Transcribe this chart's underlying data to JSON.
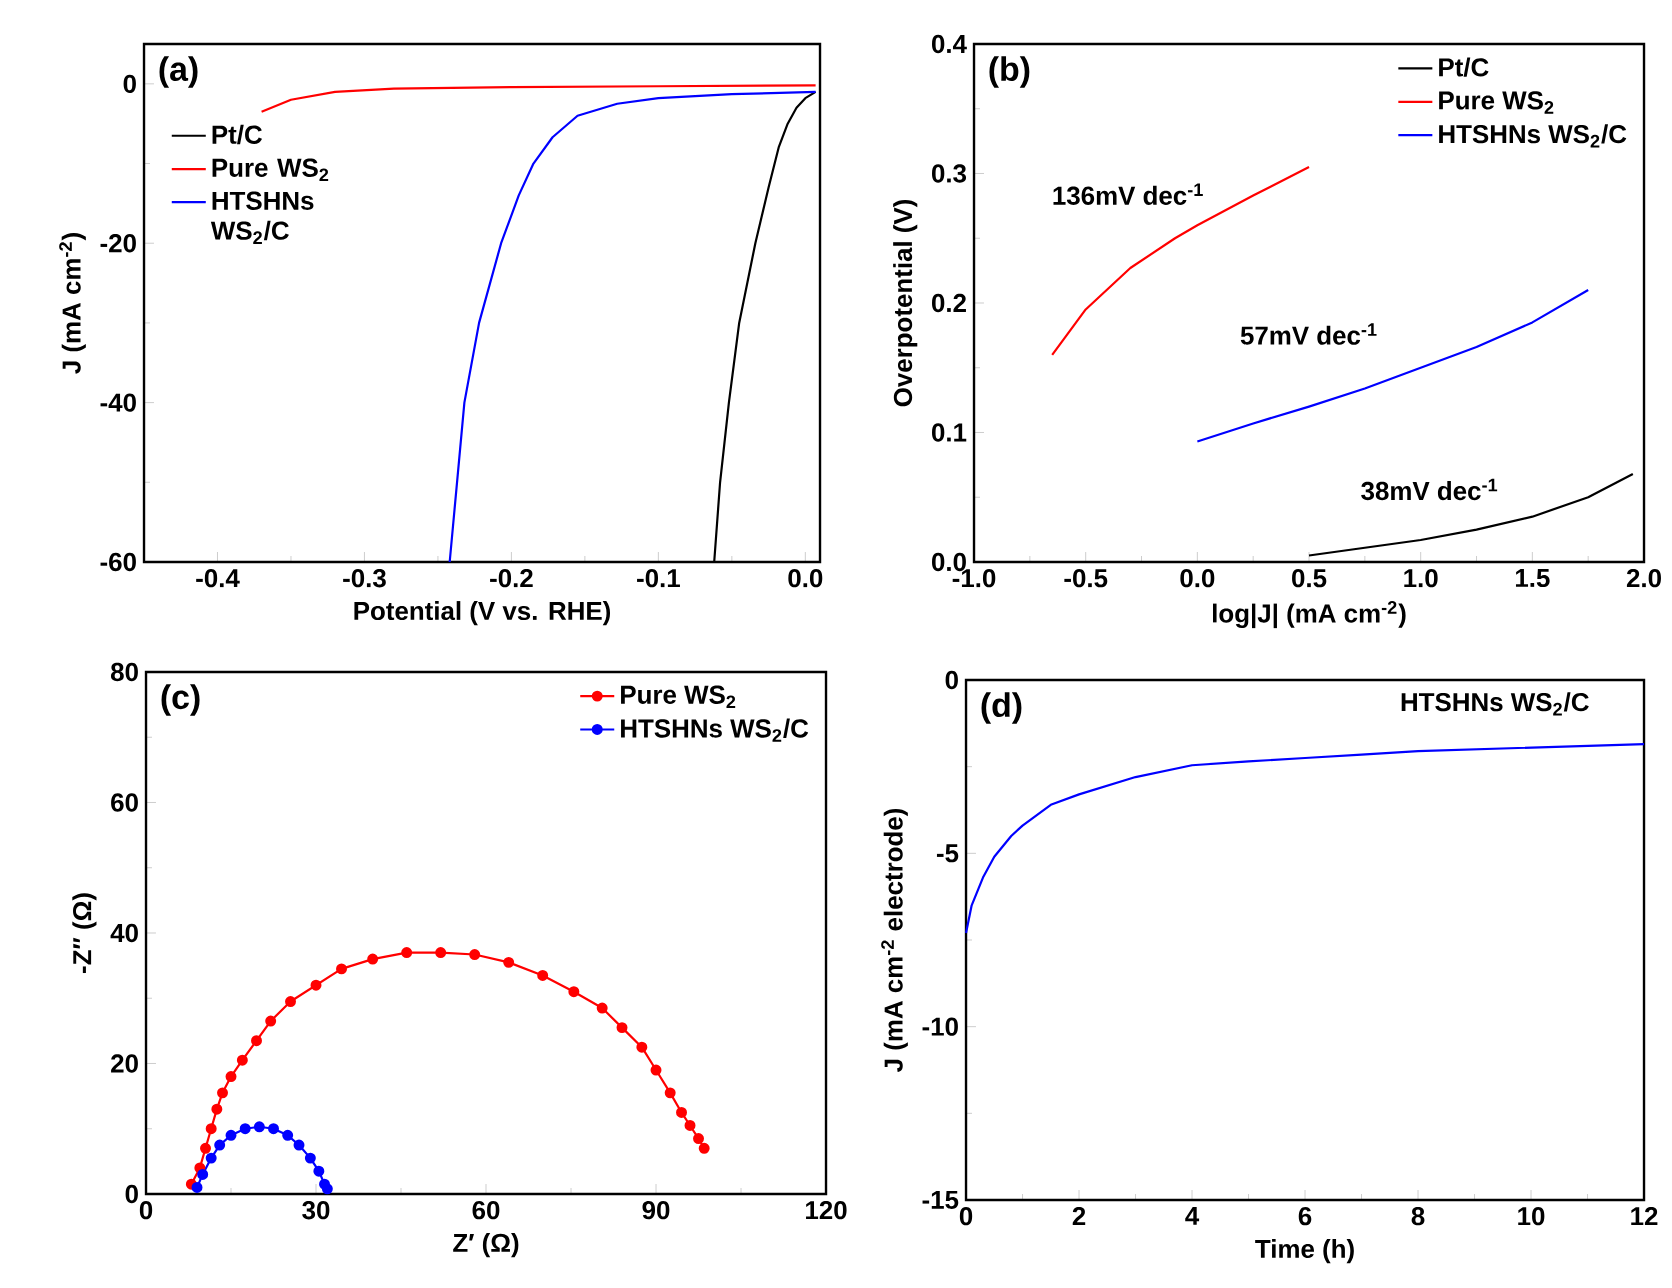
{
  "chart_data": [
    {
      "type": "line",
      "xlabel": "Potential (V vs. RHE)",
      "ylabel": "J (mA cm$^{-2}$)",
      "xlim": [
        -0.45,
        0.01
      ],
      "ylim": [
        -60,
        5
      ],
      "xticks": [
        -0.4,
        -0.3,
        -0.2,
        -0.1,
        {
          "value": 0,
          "label": "0.0"
        }
      ],
      "yticks": [
        0,
        -20,
        -40,
        -60
      ],
      "legend": "top left",
      "annotations": [
        "(a)"
      ],
      "series": [
        {
          "name": "Pt/C",
          "color": "#000000",
          "x": [
            -0.062,
            -0.058,
            -0.052,
            -0.045,
            -0.034,
            -0.025,
            -0.018,
            -0.012,
            -0.006,
            0.0,
            0.007
          ],
          "values": [
            -60,
            -50,
            -40,
            -30,
            -20,
            -13,
            -7.9,
            -5,
            -3,
            -1.8,
            -1
          ]
        },
        {
          "name": "Pure WS$_{2}$",
          "color": "#ff0000",
          "x": [
            -0.37,
            -0.35,
            -0.32,
            -0.28,
            -0.2,
            -0.1,
            0.007
          ],
          "values": [
            -3.5,
            -2,
            -1,
            -0.6,
            -0.4,
            -0.3,
            -0.2
          ]
        },
        {
          "name": "HTSHNs WS$_{2}$/C",
          "color": "#0000ff",
          "x": [
            -0.242,
            -0.237,
            -0.232,
            -0.222,
            -0.207,
            -0.195,
            -0.185,
            -0.172,
            -0.155,
            -0.128,
            -0.1,
            -0.05,
            0.007
          ],
          "values": [
            -60,
            -50,
            -40,
            -30,
            -20,
            -14,
            -10,
            -6.7,
            -4,
            -2.5,
            -1.8,
            -1.3,
            -1
          ]
        }
      ]
    },
    {
      "type": "line",
      "xlabel": "log|J| (mA cm$^{-2}$)",
      "ylabel": "Overpotential (V)",
      "xlim": [
        -1,
        2
      ],
      "ylim": [
        0,
        0.4
      ],
      "xticks": [
        {
          "value": -1,
          "label": "-1.0"
        },
        -0.5,
        {
          "value": 0,
          "label": "0.0"
        },
        0.5,
        {
          "value": 1,
          "label": "1.0"
        },
        1.5,
        {
          "value": 2,
          "label": "2.0"
        }
      ],
      "yticks": [
        {
          "value": 0,
          "label": "0.0"
        },
        0.1,
        0.2,
        0.3,
        0.4
      ],
      "legend": "top right",
      "annotations": [
        "(b)",
        "136mV dec$^{-1}$",
        "57mV dec$^{-1}$",
        "38mV dec$^{-1}$"
      ],
      "series": [
        {
          "name": "Pt/C",
          "color": "#000000",
          "x": [
            0.5,
            0.75,
            1.0,
            1.25,
            1.5,
            1.75,
            1.95
          ],
          "values": [
            0.005,
            0.011,
            0.017,
            0.025,
            0.035,
            0.05,
            0.068
          ]
        },
        {
          "name": "Pure WS$_{2}$",
          "color": "#ff0000",
          "x": [
            -0.65,
            -0.5,
            -0.3,
            -0.1,
            0,
            0.25,
            0.5
          ],
          "values": [
            0.16,
            0.195,
            0.227,
            0.25,
            0.26,
            0.283,
            0.305
          ]
        },
        {
          "name": "HTSHNs WS$_{2}$/C",
          "color": "#0000ff",
          "x": [
            0,
            0.25,
            0.5,
            0.75,
            1.0,
            1.25,
            1.5,
            1.75
          ],
          "values": [
            0.093,
            0.107,
            0.12,
            0.134,
            0.15,
            0.166,
            0.185,
            0.21
          ]
        }
      ]
    },
    {
      "type": "line",
      "marker": "circle",
      "xlabel": "Z′ (Ω)",
      "ylabel": "-Z″ (Ω)",
      "xlim": [
        0,
        120
      ],
      "ylim": [
        0,
        80
      ],
      "xticks": [
        0,
        30,
        60,
        90,
        120
      ],
      "yticks": [
        0,
        20,
        40,
        60,
        80
      ],
      "legend": "top right",
      "annotations": [
        "(c)"
      ],
      "series": [
        {
          "name": "Pure WS$_{2}$",
          "color": "#ff0000",
          "x": [
            8,
            9.5,
            10.5,
            11.5,
            12.5,
            13.5,
            15,
            17,
            19.5,
            22,
            25.5,
            30,
            34.5,
            40,
            46,
            52,
            58,
            64,
            70,
            75.5,
            80.5,
            84,
            87.5,
            90,
            92.5,
            94.5,
            96,
            97.5,
            98.5
          ],
          "values": [
            1.5,
            4,
            7,
            10,
            13,
            15.5,
            18,
            20.5,
            23.5,
            26.5,
            29.5,
            32,
            34.5,
            36,
            37,
            37,
            36.7,
            35.5,
            33.5,
            31,
            28.5,
            25.5,
            22.5,
            19,
            15.5,
            12.5,
            10.5,
            8.5,
            7
          ]
        },
        {
          "name": "HTSHNs WS$_{2}$/C",
          "color": "#0000ff",
          "x": [
            9,
            10,
            11.5,
            13,
            15,
            17.5,
            20,
            22.5,
            25,
            27,
            29,
            30.5,
            31.5,
            32
          ],
          "values": [
            1,
            3,
            5.5,
            7.5,
            9,
            10,
            10.3,
            10,
            9,
            7.5,
            5.5,
            3.5,
            1.5,
            0.8
          ]
        }
      ]
    },
    {
      "type": "line",
      "xlabel": "Time (h)",
      "ylabel": "J (mA cm$^{-2}$ electrode)",
      "xlim": [
        0,
        12
      ],
      "ylim": [
        -15,
        0
      ],
      "xticks": [
        0,
        2,
        4,
        6,
        8,
        10,
        12
      ],
      "yticks": [
        0,
        -5,
        -10,
        -15
      ],
      "annotations": [
        "(d)",
        "HTSHNs WS$_{2}$/C"
      ],
      "series": [
        {
          "color": "#0000ff",
          "x": [
            0,
            0.1,
            0.3,
            0.5,
            0.8,
            1,
            1.5,
            2,
            3,
            4,
            5,
            6,
            7,
            8,
            9,
            10,
            11,
            12
          ],
          "values": [
            -7.3,
            -6.5,
            -5.7,
            -5.1,
            -4.5,
            -4.2,
            -3.6,
            -3.3,
            -2.8,
            -2.46,
            -2.35,
            -2.25,
            -2.15,
            -2.05,
            -2.0,
            -1.95,
            -1.9,
            -1.85
          ]
        }
      ]
    }
  ]
}
